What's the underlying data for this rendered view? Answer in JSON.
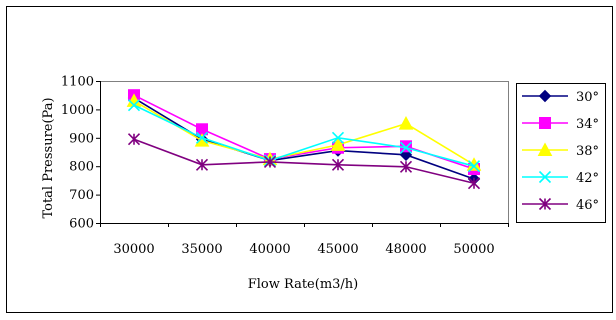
{
  "chart_data": {
    "type": "line",
    "title": "",
    "xlabel": "Flow Rate(m3/h)",
    "ylabel": "Total Pressure(Pa)",
    "categories": [
      "30000",
      "35000",
      "40000",
      "45000",
      "48000",
      "50000"
    ],
    "ylim": [
      600,
      1100
    ],
    "yticks": [
      "600",
      "700",
      "800",
      "900",
      "1000",
      "1100"
    ],
    "grid": false,
    "legend_position": "right",
    "series": [
      {
        "name": "30°",
        "color": "#000080",
        "marker": "diamond",
        "values": [
          1040,
          895,
          820,
          855,
          840,
          755
        ]
      },
      {
        "name": "34°",
        "color": "#ff00ff",
        "marker": "square",
        "values": [
          1050,
          930,
          825,
          865,
          870,
          790
        ]
      },
      {
        "name": "38°",
        "color": "#ffff00",
        "marker": "triangle",
        "values": [
          1030,
          890,
          825,
          875,
          950,
          805
        ]
      },
      {
        "name": "42°",
        "color": "#00ffff",
        "marker": "x",
        "values": [
          1015,
          900,
          820,
          900,
          865,
          800
        ]
      },
      {
        "name": "46°",
        "color": "#800080",
        "marker": "star",
        "values": [
          895,
          805,
          815,
          805,
          798,
          740
        ]
      }
    ]
  }
}
